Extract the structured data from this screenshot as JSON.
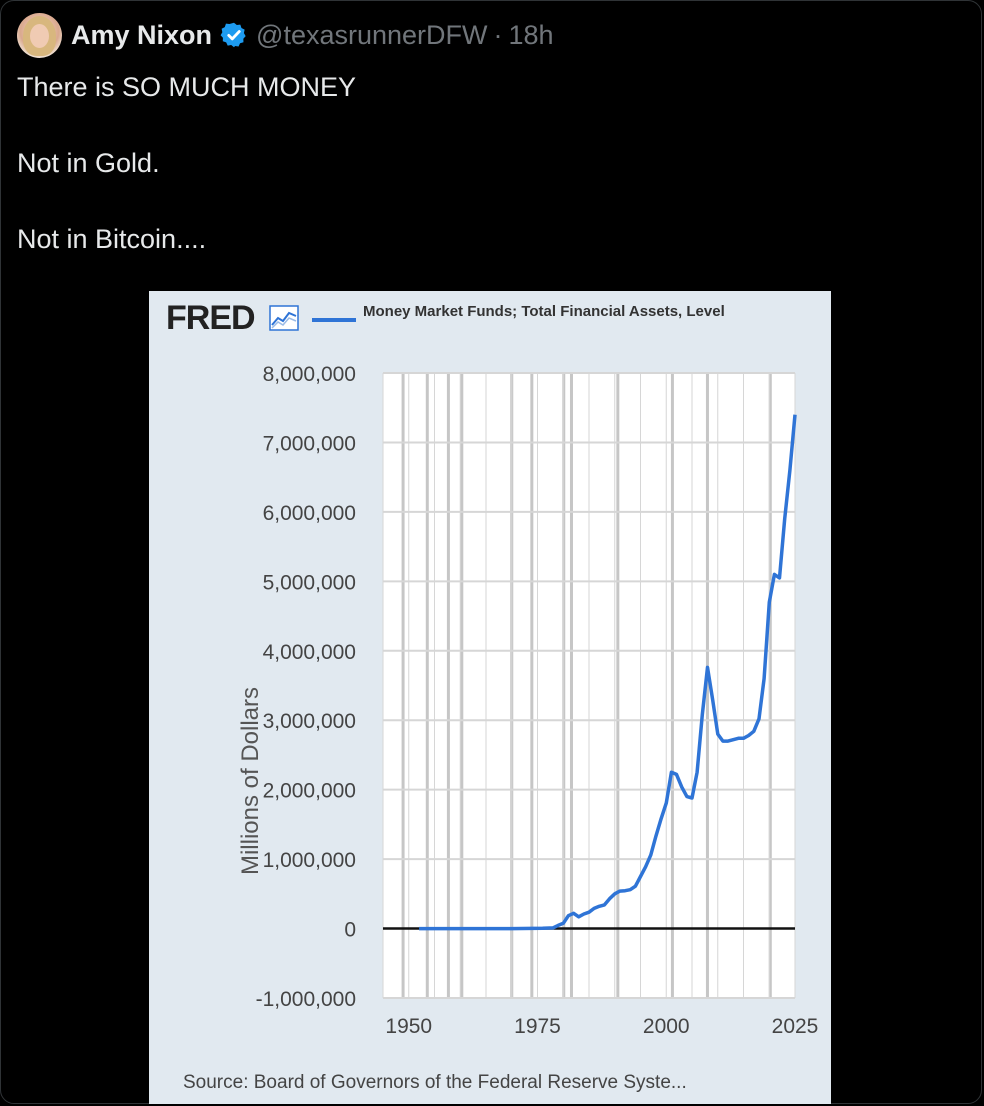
{
  "post": {
    "author_name": "Amy Nixon",
    "handle": "@texasrunnerDFW",
    "separator": "·",
    "time": "18h",
    "text_lines": [
      "There is SO MUCH MONEY",
      "Not in Gold.",
      "Not in Bitcoin...."
    ]
  },
  "icons": {
    "avatar": "avatar",
    "verified": "verified-badge-icon",
    "fred_chart": "line-chart-icon"
  },
  "colors": {
    "background": "#000000",
    "text": "#e7e9ea",
    "muted": "#71767b",
    "verified": "#1d9bf0",
    "chart_bg": "#e1e9f0",
    "series": "#2f74d6"
  },
  "chart_data": {
    "type": "line",
    "logo": "FRED",
    "title": "",
    "ylabel": "Millions of Dollars",
    "source": "Source: Board of Governors of the Federal Reserve Syste...",
    "ylim": [
      -1000000,
      8000000
    ],
    "xlim": [
      1945,
      2025
    ],
    "y_ticks": [
      "8,000,000",
      "7,000,000",
      "6,000,000",
      "5,000,000",
      "4,000,000",
      "3,000,000",
      "2,000,000",
      "1,000,000",
      "0",
      "-1,000,000"
    ],
    "x_ticks": [
      "1950",
      "1975",
      "2000",
      "2025"
    ],
    "grid": true,
    "recession_years": [
      1948.9,
      1953.6,
      1957.7,
      1960.3,
      1970.0,
      1973.9,
      1980.1,
      1981.6,
      1990.6,
      2001.2,
      2008.0,
      2020.2
    ],
    "series": [
      {
        "name": "Money Market Funds; Total Financial Assets, Level",
        "points": [
          [
            1952,
            0
          ],
          [
            1960,
            0
          ],
          [
            1970,
            0
          ],
          [
            1974,
            2000
          ],
          [
            1976,
            4000
          ],
          [
            1978,
            10000
          ],
          [
            1979,
            45000
          ],
          [
            1980,
            75000
          ],
          [
            1981,
            185000
          ],
          [
            1982,
            220000
          ],
          [
            1983,
            170000
          ],
          [
            1984,
            210000
          ],
          [
            1985,
            235000
          ],
          [
            1986,
            290000
          ],
          [
            1987,
            320000
          ],
          [
            1988,
            340000
          ],
          [
            1989,
            430000
          ],
          [
            1990,
            500000
          ],
          [
            1991,
            540000
          ],
          [
            1992,
            545000
          ],
          [
            1993,
            560000
          ],
          [
            1994,
            610000
          ],
          [
            1995,
            750000
          ],
          [
            1996,
            890000
          ],
          [
            1997,
            1060000
          ],
          [
            1998,
            1330000
          ],
          [
            1999,
            1580000
          ],
          [
            2000,
            1810000
          ],
          [
            2001,
            2250000
          ],
          [
            2002,
            2220000
          ],
          [
            2003,
            2040000
          ],
          [
            2004,
            1900000
          ],
          [
            2005,
            1880000
          ],
          [
            2006,
            2250000
          ],
          [
            2007,
            3080000
          ],
          [
            2008,
            3760000
          ],
          [
            2009,
            3300000
          ],
          [
            2010,
            2800000
          ],
          [
            2011,
            2700000
          ],
          [
            2012,
            2700000
          ],
          [
            2013,
            2720000
          ],
          [
            2014,
            2740000
          ],
          [
            2015,
            2740000
          ],
          [
            2016,
            2780000
          ],
          [
            2017,
            2840000
          ],
          [
            2018,
            3020000
          ],
          [
            2019,
            3600000
          ],
          [
            2020,
            4700000
          ],
          [
            2021,
            5100000
          ],
          [
            2022,
            5050000
          ],
          [
            2023,
            5900000
          ],
          [
            2024,
            6600000
          ],
          [
            2025,
            7400000
          ]
        ]
      }
    ]
  }
}
